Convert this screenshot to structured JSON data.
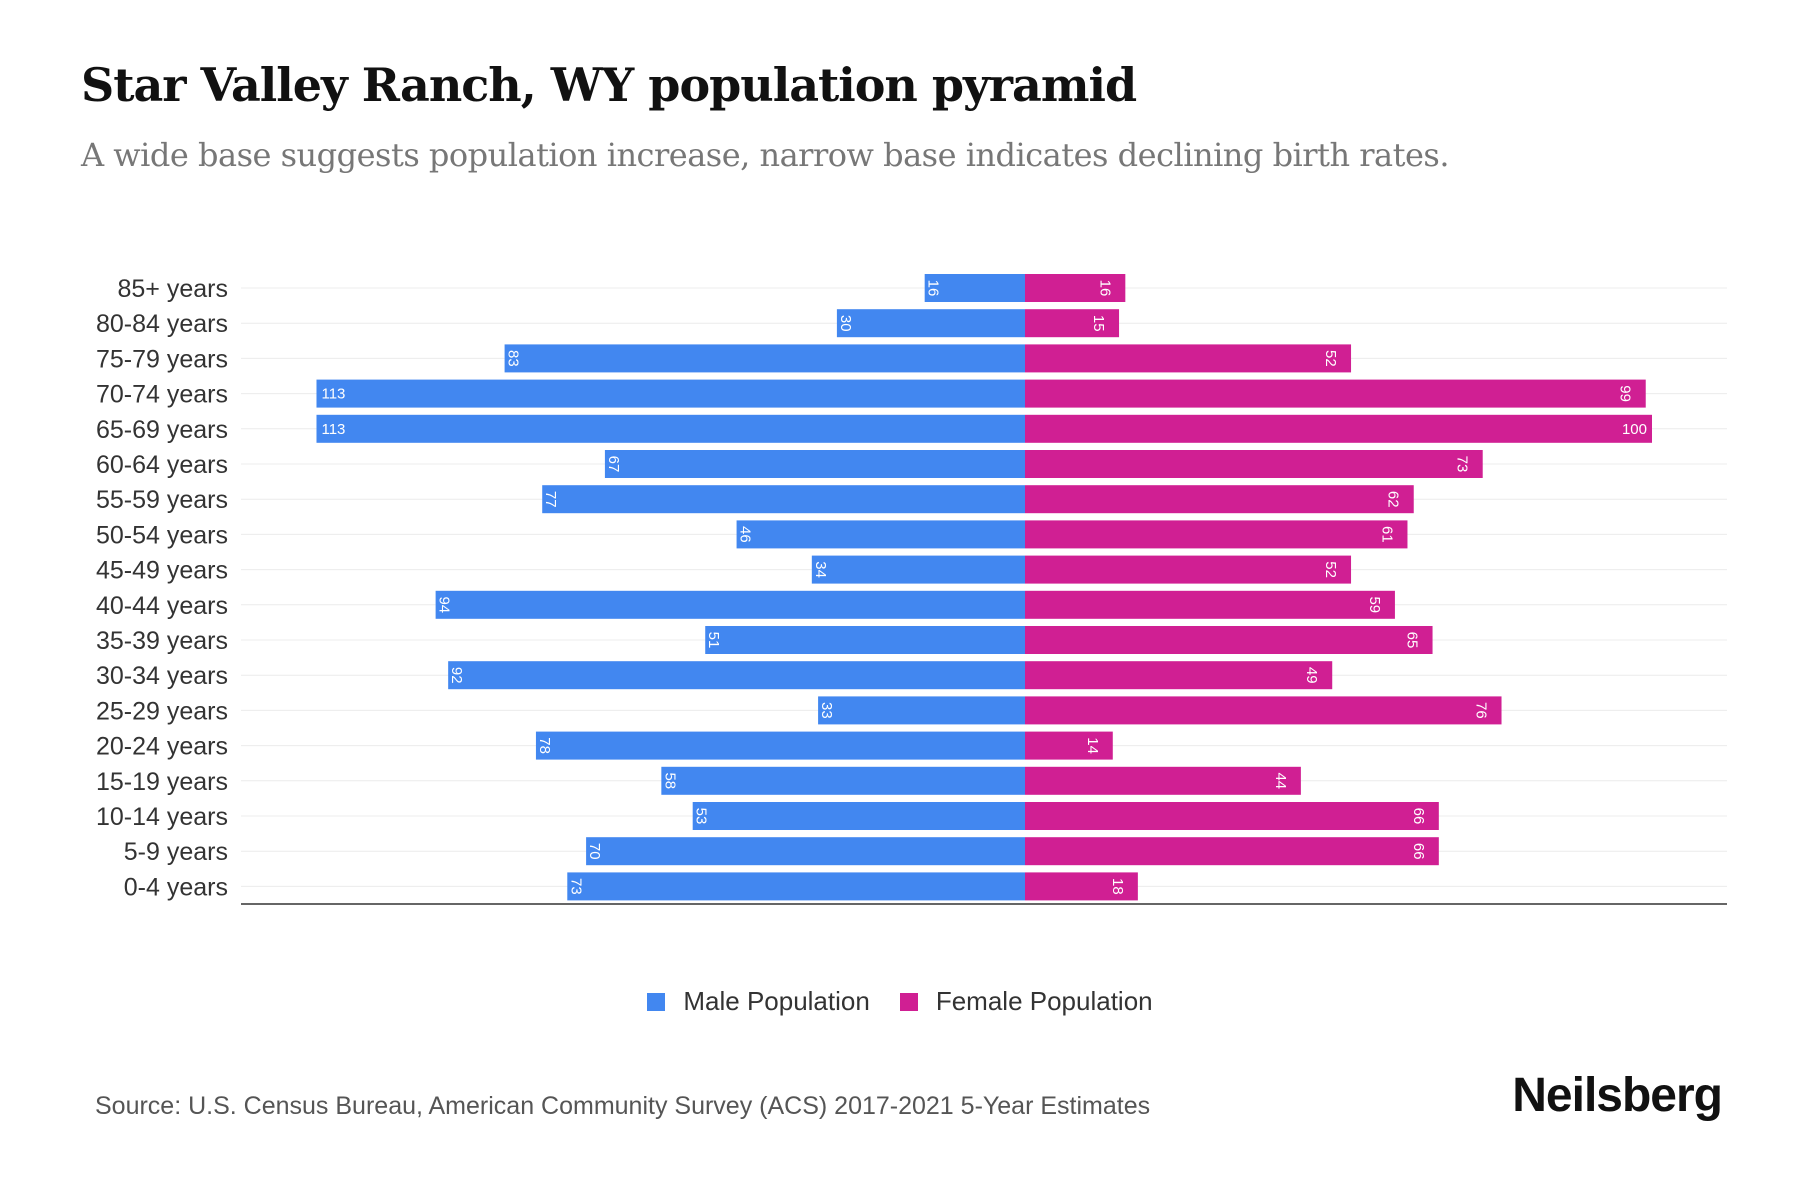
{
  "title": "Star Valley Ranch, WY population pyramid",
  "subtitle": "A wide base suggests population increase, narrow base indicates declining birth rates.",
  "source": "Source: U.S. Census Bureau, American Community Survey (ACS) 2017-2021 5-Year Estimates",
  "logo": "Neilsberg",
  "colors": {
    "male": "#4287f0",
    "female": "#d01f93"
  },
  "chart_data": {
    "type": "bar",
    "orientation": "horizontal-pyramid",
    "categories": [
      "85+ years",
      "80-84 years",
      "75-79 years",
      "70-74 years",
      "65-69 years",
      "60-64 years",
      "55-59 years",
      "50-54 years",
      "45-49 years",
      "40-44 years",
      "35-39 years",
      "30-34 years",
      "25-29 years",
      "20-24 years",
      "15-19 years",
      "10-14 years",
      "5-9 years",
      "0-4 years"
    ],
    "series": [
      {
        "name": "Male Population",
        "values": [
          16,
          30,
          83,
          113,
          113,
          67,
          77,
          46,
          34,
          94,
          51,
          92,
          33,
          78,
          58,
          53,
          70,
          73
        ]
      },
      {
        "name": "Female Population",
        "values": [
          16,
          15,
          52,
          99,
          100,
          73,
          62,
          61,
          52,
          59,
          65,
          49,
          76,
          14,
          44,
          66,
          66,
          18
        ]
      }
    ],
    "xlim": [
      -118,
      118
    ],
    "grid": true,
    "legend": "bottom-center"
  }
}
